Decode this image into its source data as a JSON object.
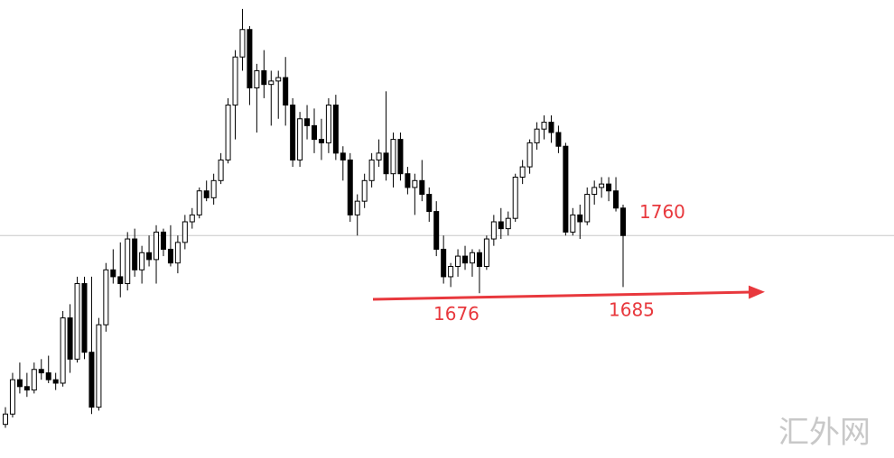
{
  "chart_data": {
    "type": "candlestick",
    "ylim": [
      1436,
      2103
    ],
    "levels": [
      1760,
      1676,
      1685
    ],
    "watermark": "汇外网",
    "ohlc": [
      [
        1485,
        1510,
        1480,
        1500
      ],
      [
        1500,
        1560,
        1495,
        1550
      ],
      [
        1550,
        1575,
        1530,
        1540
      ],
      [
        1540,
        1560,
        1525,
        1535
      ],
      [
        1535,
        1575,
        1530,
        1565
      ],
      [
        1565,
        1580,
        1550,
        1560
      ],
      [
        1560,
        1585,
        1545,
        1550
      ],
      [
        1550,
        1560,
        1535,
        1545
      ],
      [
        1545,
        1650,
        1540,
        1640
      ],
      [
        1640,
        1660,
        1560,
        1580
      ],
      [
        1580,
        1700,
        1575,
        1690
      ],
      [
        1690,
        1700,
        1580,
        1590
      ],
      [
        1590,
        1700,
        1500,
        1510
      ],
      [
        1510,
        1640,
        1505,
        1630
      ],
      [
        1630,
        1720,
        1620,
        1710
      ],
      [
        1710,
        1740,
        1690,
        1700
      ],
      [
        1700,
        1750,
        1670,
        1690
      ],
      [
        1690,
        1765,
        1680,
        1755
      ],
      [
        1755,
        1770,
        1700,
        1710
      ],
      [
        1710,
        1745,
        1690,
        1735
      ],
      [
        1735,
        1760,
        1715,
        1725
      ],
      [
        1725,
        1775,
        1690,
        1765
      ],
      [
        1765,
        1770,
        1730,
        1740
      ],
      [
        1740,
        1775,
        1715,
        1720
      ],
      [
        1720,
        1760,
        1705,
        1750
      ],
      [
        1750,
        1790,
        1740,
        1780
      ],
      [
        1780,
        1800,
        1770,
        1790
      ],
      [
        1790,
        1830,
        1785,
        1825
      ],
      [
        1825,
        1840,
        1810,
        1815
      ],
      [
        1815,
        1850,
        1805,
        1840
      ],
      [
        1840,
        1880,
        1835,
        1870
      ],
      [
        1870,
        1960,
        1865,
        1950
      ],
      [
        1950,
        2030,
        1900,
        2020
      ],
      [
        2020,
        2090,
        2000,
        2060
      ],
      [
        2060,
        2065,
        1950,
        1975
      ],
      [
        1975,
        2010,
        1910,
        2000
      ],
      [
        2000,
        2030,
        1960,
        1980
      ],
      [
        1980,
        2000,
        1920,
        1985
      ],
      [
        1985,
        2000,
        1930,
        1990
      ],
      [
        1990,
        2020,
        1920,
        1950
      ],
      [
        1950,
        1960,
        1860,
        1870
      ],
      [
        1870,
        1940,
        1860,
        1930
      ],
      [
        1930,
        1950,
        1900,
        1920
      ],
      [
        1920,
        1945,
        1880,
        1900
      ],
      [
        1900,
        1930,
        1870,
        1895
      ],
      [
        1895,
        1960,
        1880,
        1950
      ],
      [
        1950,
        1965,
        1870,
        1880
      ],
      [
        1880,
        1890,
        1840,
        1870
      ],
      [
        1870,
        1880,
        1780,
        1790
      ],
      [
        1790,
        1820,
        1760,
        1810
      ],
      [
        1810,
        1850,
        1800,
        1840
      ],
      [
        1840,
        1880,
        1830,
        1870
      ],
      [
        1870,
        1900,
        1860,
        1880
      ],
      [
        1880,
        1970,
        1840,
        1850
      ],
      [
        1850,
        1910,
        1830,
        1900
      ],
      [
        1900,
        1910,
        1840,
        1850
      ],
      [
        1850,
        1860,
        1820,
        1830
      ],
      [
        1830,
        1850,
        1790,
        1840
      ],
      [
        1840,
        1870,
        1810,
        1820
      ],
      [
        1820,
        1830,
        1780,
        1795
      ],
      [
        1795,
        1810,
        1730,
        1740
      ],
      [
        1740,
        1760,
        1690,
        1700
      ],
      [
        1700,
        1720,
        1685,
        1715
      ],
      [
        1715,
        1740,
        1700,
        1730
      ],
      [
        1730,
        1745,
        1710,
        1720
      ],
      [
        1720,
        1740,
        1700,
        1735
      ],
      [
        1735,
        1740,
        1676,
        1715
      ],
      [
        1715,
        1760,
        1710,
        1755
      ],
      [
        1755,
        1790,
        1745,
        1780
      ],
      [
        1780,
        1800,
        1755,
        1770
      ],
      [
        1770,
        1795,
        1760,
        1785
      ],
      [
        1785,
        1850,
        1780,
        1845
      ],
      [
        1845,
        1870,
        1835,
        1860
      ],
      [
        1860,
        1900,
        1850,
        1895
      ],
      [
        1895,
        1925,
        1885,
        1915
      ],
      [
        1915,
        1935,
        1900,
        1925
      ],
      [
        1925,
        1935,
        1895,
        1910
      ],
      [
        1910,
        1920,
        1880,
        1890
      ],
      [
        1890,
        1895,
        1760,
        1765
      ],
      [
        1765,
        1800,
        1760,
        1790
      ],
      [
        1790,
        1805,
        1755,
        1780
      ],
      [
        1780,
        1830,
        1775,
        1820
      ],
      [
        1820,
        1840,
        1805,
        1830
      ],
      [
        1830,
        1845,
        1815,
        1835
      ],
      [
        1835,
        1845,
        1810,
        1825
      ],
      [
        1825,
        1845,
        1795,
        1800
      ],
      [
        1800,
        1805,
        1685,
        1760
      ]
    ]
  }
}
